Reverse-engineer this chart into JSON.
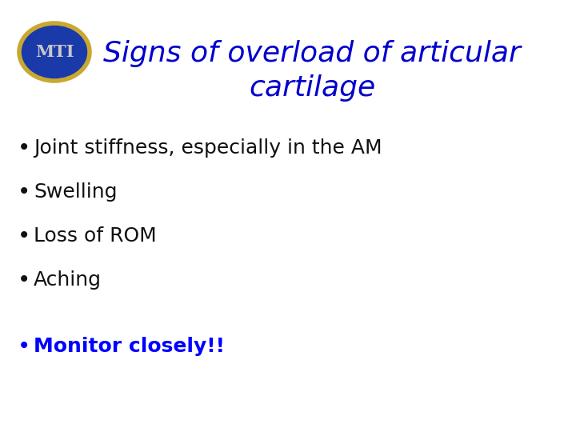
{
  "title_line1": "Signs of overload of articular",
  "title_line2": "cartilage",
  "title_color": "#0000CC",
  "title_fontsize": 26,
  "bullet_items": [
    "Joint stiffness, especially in the AM",
    "Swelling",
    "Loss of ROM",
    "Aching"
  ],
  "bullet_color": "#111111",
  "bullet_fontsize": 18,
  "highlight_item": "Monitor closely!!",
  "highlight_color": "#0000FF",
  "highlight_fontsize": 18,
  "background_color": "#FFFFFF",
  "logo_text": "MTI",
  "logo_bg_color": "#1a3aaa",
  "logo_border_color": "#c8a830",
  "logo_text_color": "#c8c8c8"
}
